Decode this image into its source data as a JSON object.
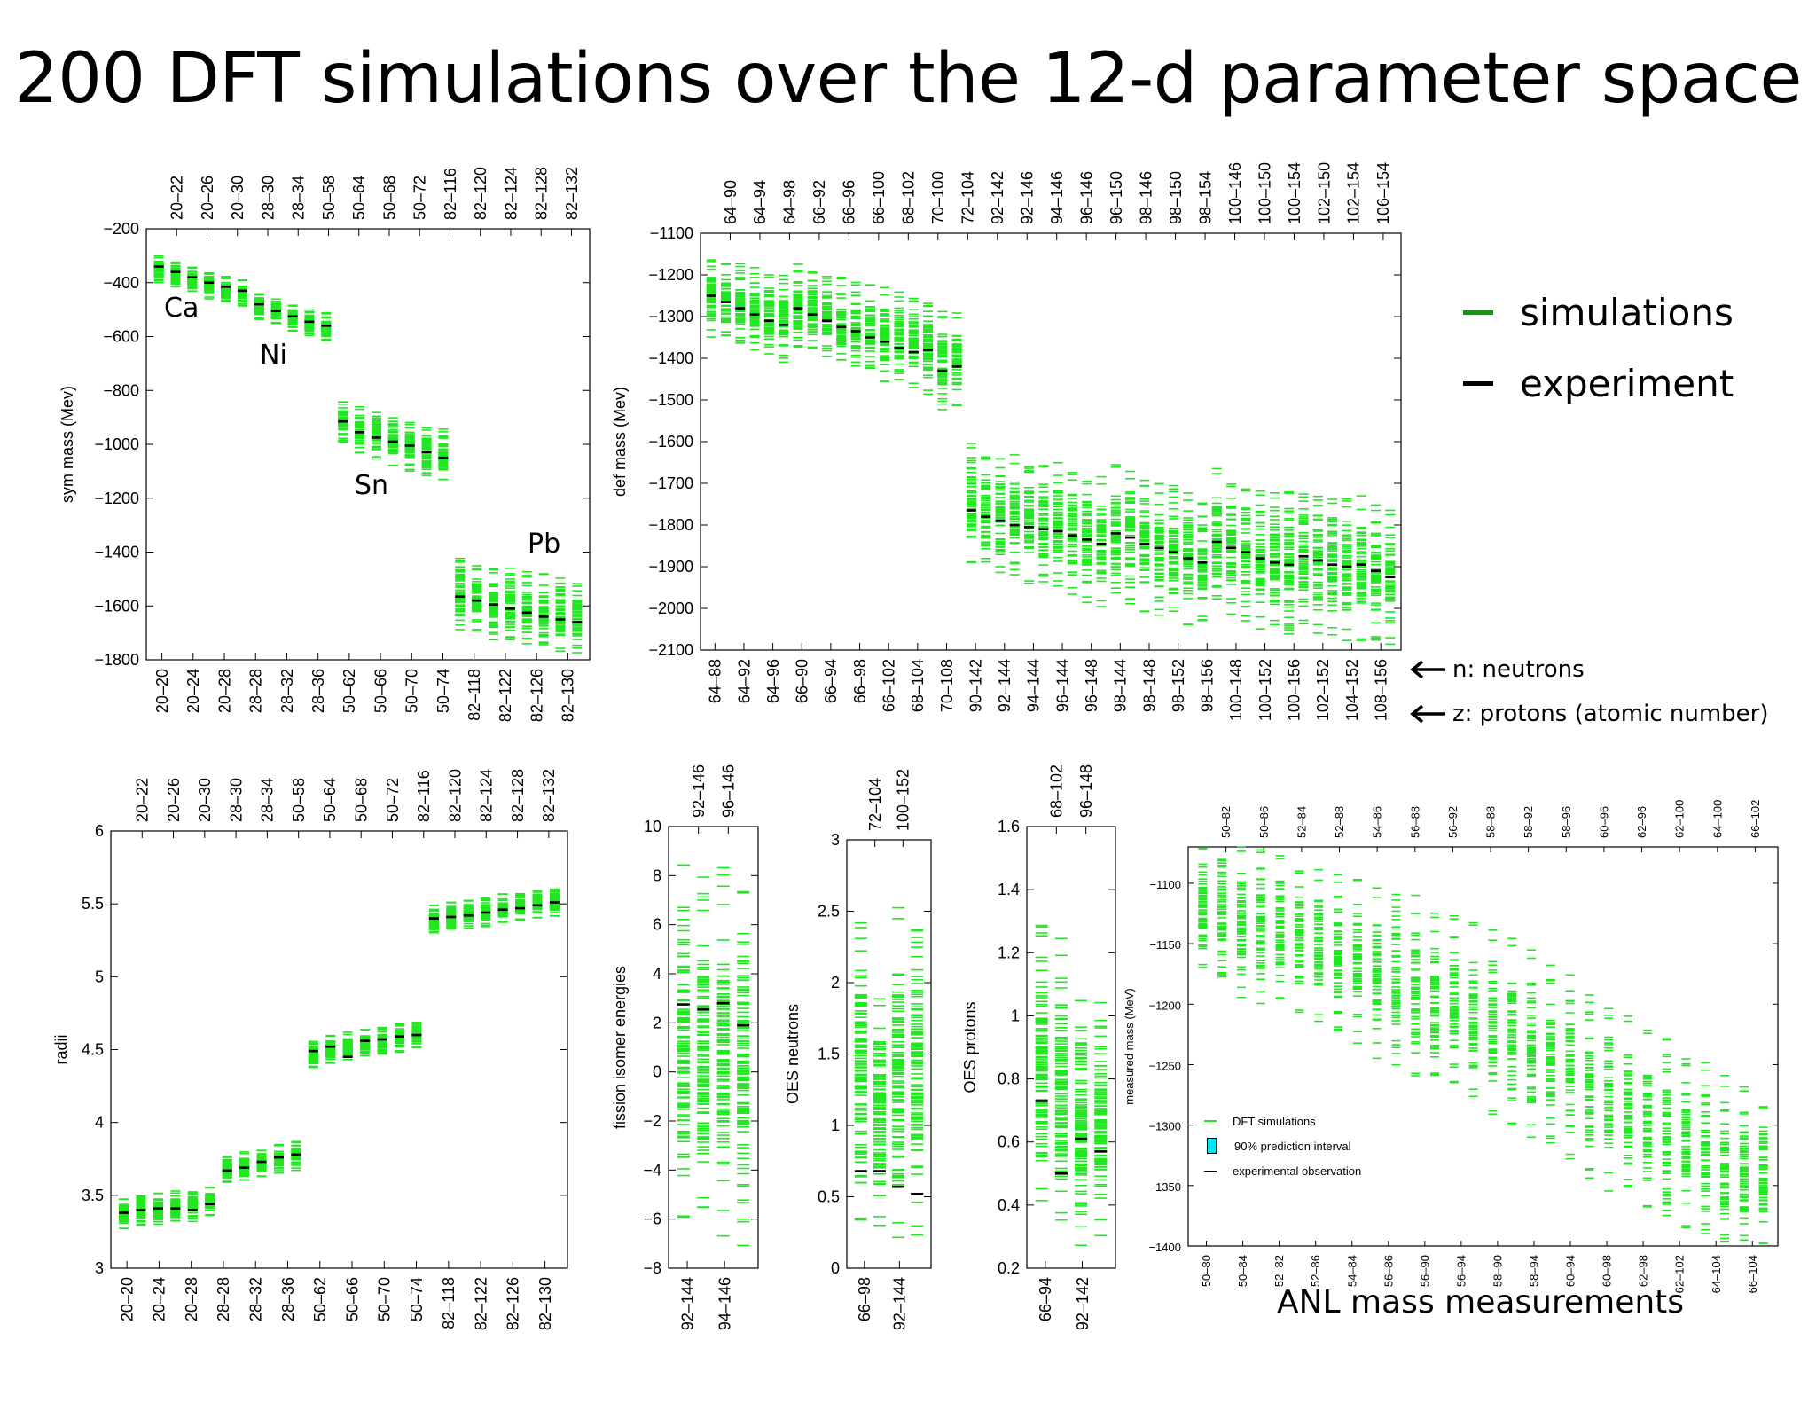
{
  "title": "200 DFT simulations over the 12-d parameter space",
  "legend": {
    "simulations_label": "simulations",
    "experiment_label": "experiment",
    "simulations_color": "#1a8f1a",
    "experiment_color": "#000000"
  },
  "annotations": {
    "neutrons": "n: neutrons",
    "protons": "z: protons (atomic number)",
    "ca": "Ca",
    "ni": "Ni",
    "sn": "Sn",
    "pb": "Pb",
    "anl_caption": "ANL mass measurements"
  },
  "anl_legend": {
    "sim": "DFT simulations",
    "pi": "90% prediction interval",
    "obs": "experimental observation",
    "pi_color": "#00e5ee"
  },
  "chart_data": [
    {
      "id": "sym",
      "type": "scatter",
      "ylabel": "sym mass (Mev)",
      "ylim": [
        -1800,
        -200
      ],
      "yticks": [
        -200,
        -400,
        -600,
        -800,
        -1000,
        -1200,
        -1400,
        -1600,
        -1800
      ],
      "bottom_labels": [
        "20–20",
        "20–24",
        "20–28",
        "28–28",
        "28–32",
        "28–36",
        "50–62",
        "50–66",
        "50–70",
        "50–74",
        "82–118",
        "82–122",
        "82–126",
        "82–130"
      ],
      "top_labels": [
        "20–22",
        "20–26",
        "20–30",
        "28–30",
        "28–34",
        "50–58",
        "50–64",
        "50–68",
        "50–72",
        "82–116",
        "82–120",
        "82–124",
        "82–128",
        "82–132"
      ],
      "experiment": [
        -340,
        -360,
        -380,
        -400,
        -415,
        -430,
        -480,
        -505,
        -525,
        -545,
        -560,
        -915,
        -955,
        -975,
        -990,
        -1005,
        -1030,
        -1050,
        -1565,
        -1580,
        -1595,
        -1610,
        -1625,
        -1640,
        -1650,
        -1660
      ],
      "sim_range": [
        [
          -300,
          -400
        ],
        [
          -320,
          -420
        ],
        [
          -340,
          -440
        ],
        [
          -360,
          -460
        ],
        [
          -375,
          -475
        ],
        [
          -390,
          -490
        ],
        [
          -440,
          -540
        ],
        [
          -460,
          -560
        ],
        [
          -480,
          -580
        ],
        [
          -500,
          -600
        ],
        [
          -510,
          -620
        ],
        [
          -840,
          -1000
        ],
        [
          -860,
          -1040
        ],
        [
          -880,
          -1060
        ],
        [
          -900,
          -1080
        ],
        [
          -910,
          -1100
        ],
        [
          -930,
          -1120
        ],
        [
          -940,
          -1140
        ],
        [
          -1420,
          -1690
        ],
        [
          -1440,
          -1710
        ],
        [
          -1450,
          -1730
        ],
        [
          -1460,
          -1740
        ],
        [
          -1470,
          -1750
        ],
        [
          -1480,
          -1760
        ],
        [
          -1490,
          -1770
        ],
        [
          -1500,
          -1780
        ]
      ]
    },
    {
      "id": "def",
      "type": "scatter",
      "ylabel": "def mass (Mev)",
      "ylim": [
        -2100,
        -1100
      ],
      "yticks": [
        -1100,
        -1200,
        -1300,
        -1400,
        -1500,
        -1600,
        -1700,
        -1800,
        -1900,
        -2000,
        -2100
      ],
      "bottom_labels": [
        "64–88",
        "64–92",
        "64–96",
        "66–90",
        "66–94",
        "66–98",
        "66–102",
        "68–104",
        "70–108",
        "90–142",
        "92–144",
        "94–144",
        "96–144",
        "96–148",
        "98–144",
        "98–148",
        "98–152",
        "98–156",
        "100–148",
        "100–152",
        "100–156",
        "102–152",
        "104–152",
        "108–156"
      ],
      "top_labels": [
        "64–90",
        "64–94",
        "64–98",
        "66–92",
        "66–96",
        "66–100",
        "68–102",
        "70–100",
        "72–104",
        "92–142",
        "92–146",
        "94–146",
        "96–146",
        "96–150",
        "98–146",
        "98–150",
        "98–154",
        "100–146",
        "100–150",
        "100–154",
        "102–150",
        "102–154",
        "106–154"
      ],
      "experiment": [
        -1250,
        -1265,
        -1280,
        -1295,
        -1310,
        -1320,
        -1280,
        -1295,
        -1310,
        -1325,
        -1335,
        -1350,
        -1360,
        -1375,
        -1385,
        -1380,
        -1430,
        -1420,
        -1765,
        -1780,
        -1790,
        -1800,
        -1805,
        -1810,
        -1815,
        -1825,
        -1835,
        -1845,
        -1820,
        -1830,
        -1845,
        -1855,
        -1865,
        -1880,
        -1890,
        -1840,
        -1855,
        -1865,
        -1880,
        -1890,
        -1895,
        -1875,
        -1885,
        -1895,
        -1900,
        -1895,
        -1910,
        -1925
      ],
      "sim_range": [
        [
          -1150,
          -1350
        ],
        [
          -1160,
          -1360
        ],
        [
          -1170,
          -1370
        ],
        [
          -1180,
          -1380
        ],
        [
          -1190,
          -1390
        ],
        [
          -1200,
          -1420
        ],
        [
          -1170,
          -1380
        ],
        [
          -1180,
          -1390
        ],
        [
          -1190,
          -1400
        ],
        [
          -1200,
          -1410
        ],
        [
          -1210,
          -1430
        ],
        [
          -1220,
          -1440
        ],
        [
          -1230,
          -1460
        ],
        [
          -1240,
          -1470
        ],
        [
          -1250,
          -1480
        ],
        [
          -1260,
          -1490
        ],
        [
          -1280,
          -1530
        ],
        [
          -1290,
          -1520
        ],
        [
          -1600,
          -1900
        ],
        [
          -1610,
          -1910
        ],
        [
          -1620,
          -1920
        ],
        [
          -1630,
          -1930
        ],
        [
          -1640,
          -1940
        ],
        [
          -1650,
          -1950
        ],
        [
          -1650,
          -1960
        ],
        [
          -1660,
          -1970
        ],
        [
          -1670,
          -1990
        ],
        [
          -1680,
          -2000
        ],
        [
          -1650,
          -1980
        ],
        [
          -1660,
          -1990
        ],
        [
          -1680,
          -2010
        ],
        [
          -1690,
          -2020
        ],
        [
          -1700,
          -2030
        ],
        [
          -1710,
          -2040
        ],
        [
          -1720,
          -2050
        ],
        [
          -1660,
          -2000
        ],
        [
          -1680,
          -2020
        ],
        [
          -1690,
          -2040
        ],
        [
          -1700,
          -2050
        ],
        [
          -1710,
          -2060
        ],
        [
          -1720,
          -2070
        ],
        [
          -1700,
          -2050
        ],
        [
          -1710,
          -2060
        ],
        [
          -1720,
          -2070
        ],
        [
          -1730,
          -2080
        ],
        [
          -1730,
          -2080
        ],
        [
          -1740,
          -2090
        ],
        [
          -1750,
          -2095
        ]
      ]
    },
    {
      "id": "radii",
      "type": "scatter",
      "ylabel": "radii",
      "ylim": [
        3,
        6
      ],
      "yticks": [
        3,
        3.5,
        4,
        4.5,
        5,
        5.5,
        6
      ],
      "bottom_labels": [
        "20–20",
        "20–24",
        "20–28",
        "28–28",
        "28–32",
        "28–36",
        "50–62",
        "50–66",
        "50–70",
        "50–74",
        "82–118",
        "82–122",
        "82–126",
        "82–130"
      ],
      "top_labels": [
        "20–22",
        "20–26",
        "20–30",
        "28–30",
        "28–34",
        "50–58",
        "50–64",
        "50–68",
        "50–72",
        "82–116",
        "82–120",
        "82–124",
        "82–128",
        "82–132"
      ],
      "experiment": [
        3.38,
        3.4,
        3.41,
        3.41,
        3.4,
        3.44,
        3.67,
        3.69,
        3.73,
        3.76,
        3.78,
        4.49,
        4.52,
        4.45,
        4.56,
        4.57,
        4.59,
        4.6,
        5.4,
        5.41,
        5.42,
        5.44,
        5.46,
        5.47,
        5.49,
        5.51
      ],
      "sim_range": [
        [
          3.27,
          3.49
        ],
        [
          3.29,
          3.51
        ],
        [
          3.3,
          3.52
        ],
        [
          3.31,
          3.53
        ],
        [
          3.32,
          3.54
        ],
        [
          3.35,
          3.56
        ],
        [
          3.58,
          3.78
        ],
        [
          3.6,
          3.8
        ],
        [
          3.62,
          3.82
        ],
        [
          3.65,
          3.85
        ],
        [
          3.67,
          3.87
        ],
        [
          4.37,
          4.57
        ],
        [
          4.4,
          4.6
        ],
        [
          4.42,
          4.62
        ],
        [
          4.44,
          4.64
        ],
        [
          4.46,
          4.66
        ],
        [
          4.48,
          4.68
        ],
        [
          4.5,
          4.7
        ],
        [
          5.29,
          5.5
        ],
        [
          5.31,
          5.52
        ],
        [
          5.33,
          5.54
        ],
        [
          5.34,
          5.55
        ],
        [
          5.36,
          5.57
        ],
        [
          5.38,
          5.58
        ],
        [
          5.4,
          5.6
        ],
        [
          5.41,
          5.61
        ]
      ]
    },
    {
      "id": "fission",
      "type": "scatter",
      "ylabel": "fission isomer energies",
      "ylim": [
        -8,
        10
      ],
      "yticks": [
        -8,
        -6,
        -4,
        -2,
        0,
        2,
        4,
        6,
        8,
        10
      ],
      "bottom_labels": [
        "92–144",
        "94–146"
      ],
      "top_labels": [
        "92–146",
        "96–146"
      ],
      "experiment": [
        2.75,
        2.55,
        2.8,
        1.9
      ],
      "sim_range": [
        [
          -7.2,
          8.6
        ],
        [
          -6.3,
          8.6
        ],
        [
          -7.0,
          8.4
        ],
        [
          -7.5,
          8.1
        ]
      ]
    },
    {
      "id": "oesn",
      "type": "scatter",
      "ylabel": "OES neutrons",
      "ylim": [
        0,
        3
      ],
      "yticks": [
        0,
        0.5,
        1,
        1.5,
        2,
        2.5,
        3
      ],
      "bottom_labels": [
        "66–98",
        "92–144"
      ],
      "top_labels": [
        "72–104",
        "100–152"
      ],
      "experiment": [
        0.68,
        0.68,
        0.57,
        0.52
      ],
      "sim_range": [
        [
          0.22,
          2.55
        ],
        [
          0.2,
          2.0
        ],
        [
          0.18,
          2.6
        ],
        [
          0.2,
          2.52
        ]
      ]
    },
    {
      "id": "oesp",
      "type": "scatter",
      "ylabel": "OES protons",
      "ylim": [
        0.2,
        1.6
      ],
      "yticks": [
        0.2,
        0.4,
        0.6,
        0.8,
        1,
        1.2,
        1.4,
        1.6
      ],
      "bottom_labels": [
        "66–94",
        "92–142"
      ],
      "top_labels": [
        "68–102",
        "96–148"
      ],
      "experiment": [
        0.73,
        0.5,
        0.61,
        0.57
      ],
      "sim_range": [
        [
          0.37,
          1.32
        ],
        [
          0.3,
          1.25
        ],
        [
          0.25,
          1.07
        ],
        [
          0.28,
          1.05
        ]
      ]
    },
    {
      "id": "anl",
      "type": "scatter",
      "ylabel": "measured mass (MeV)",
      "ylim": [
        -1400,
        -1070
      ],
      "yticks": [
        -1100,
        -1150,
        -1200,
        -1250,
        -1300,
        -1350,
        -1400
      ],
      "bottom_labels": [
        "50–80",
        "50–84",
        "52–82",
        "52–86",
        "54–84",
        "56–86",
        "56–90",
        "56–94",
        "58–90",
        "58–94",
        "60–94",
        "60–98",
        "62–98",
        "62–102",
        "64–104",
        "66–104"
      ],
      "top_labels": [
        "50–82",
        "50–86",
        "52–84",
        "52–88",
        "54–86",
        "56–88",
        "56–92",
        "58–88",
        "58–92",
        "58–96",
        "60–96",
        "62–96",
        "62–100",
        "64–100",
        "66–102"
      ],
      "sim_range": [
        [
          -1070,
          -1175
        ],
        [
          -1070,
          -1185
        ],
        [
          -1070,
          -1195
        ],
        [
          -1072,
          -1200
        ],
        [
          -1075,
          -1205
        ],
        [
          -1080,
          -1212
        ],
        [
          -1085,
          -1220
        ],
        [
          -1090,
          -1228
        ],
        [
          -1095,
          -1235
        ],
        [
          -1100,
          -1245
        ],
        [
          -1105,
          -1255
        ],
        [
          -1110,
          -1262
        ],
        [
          -1115,
          -1270
        ],
        [
          -1122,
          -1278
        ],
        [
          -1130,
          -1285
        ],
        [
          -1138,
          -1295
        ],
        [
          -1145,
          -1305
        ],
        [
          -1155,
          -1315
        ],
        [
          -1165,
          -1325
        ],
        [
          -1175,
          -1335
        ],
        [
          -1185,
          -1345
        ],
        [
          -1195,
          -1355
        ],
        [
          -1205,
          -1365
        ],
        [
          -1215,
          -1375
        ],
        [
          -1225,
          -1385
        ],
        [
          -1235,
          -1395
        ],
        [
          -1245,
          -1400
        ],
        [
          -1255,
          -1400
        ],
        [
          -1265,
          -1400
        ],
        [
          -1275,
          -1400
        ]
      ]
    }
  ]
}
